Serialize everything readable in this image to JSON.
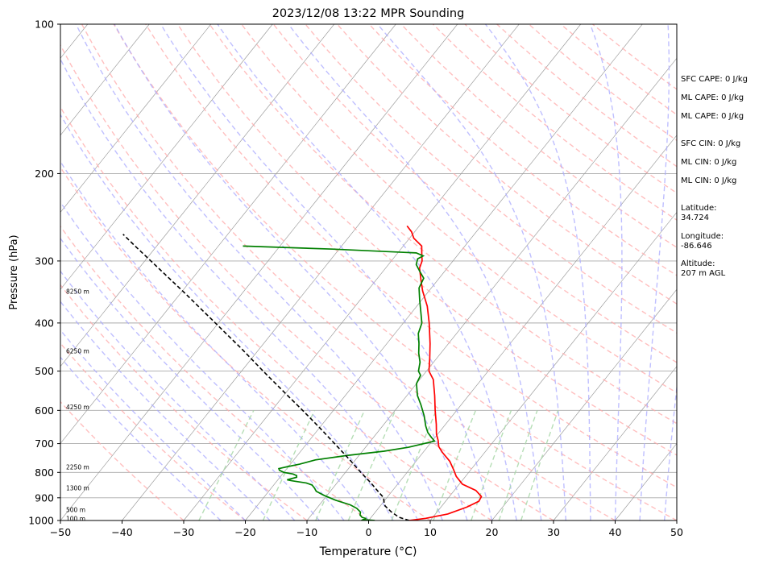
{
  "title": "2023/12/08 13:22 MPR Sounding",
  "chart_data": {
    "type": "line",
    "subtype": "skew-t log-p sounding",
    "title": "2023/12/08 13:22 MPR Sounding",
    "xlabel": "Temperature (°C)",
    "ylabel": "Pressure (hPa)",
    "xlim": [
      -50,
      50
    ],
    "ylim": [
      1000,
      100
    ],
    "y_scale": "log",
    "x_ticks": [
      -50,
      -40,
      -30,
      -20,
      -10,
      0,
      10,
      20,
      30,
      40,
      50
    ],
    "x_tick_labels": [
      "−50",
      "−40",
      "−30",
      "−20",
      "−10",
      "0",
      "10",
      "20",
      "30",
      "40",
      "50"
    ],
    "y_ticks": [
      1000,
      900,
      800,
      700,
      600,
      500,
      400,
      300,
      200,
      100
    ],
    "y_tick_labels": [
      "1000",
      "900",
      "800",
      "700",
      "600",
      "500",
      "400",
      "300",
      "200",
      "100"
    ],
    "grid": true,
    "height_labels": [
      {
        "p": 990,
        "text": "100 m"
      },
      {
        "p": 950,
        "text": "500 m"
      },
      {
        "p": 860,
        "text": "1300 m"
      },
      {
        "p": 780,
        "text": "2250 m"
      },
      {
        "p": 590,
        "text": "4250 m"
      },
      {
        "p": 455,
        "text": "6250 m"
      },
      {
        "p": 345,
        "text": "8250 m"
      }
    ],
    "series": [
      {
        "color": "#ff0000",
        "role": "temperature",
        "points": [
          {
            "p": 1000,
            "t": 6.6
          },
          {
            "p": 990,
            "t": 9.0
          },
          {
            "p": 970,
            "t": 12.0
          },
          {
            "p": 940,
            "t": 14.2
          },
          {
            "p": 915,
            "t": 15.4
          },
          {
            "p": 895,
            "t": 15.2
          },
          {
            "p": 870,
            "t": 13.5
          },
          {
            "p": 845,
            "t": 10.5
          },
          {
            "p": 815,
            "t": 8.5
          },
          {
            "p": 790,
            "t": 7.2
          },
          {
            "p": 760,
            "t": 5.5
          },
          {
            "p": 730,
            "t": 3.2
          },
          {
            "p": 710,
            "t": 1.8
          },
          {
            "p": 690,
            "t": 0.9
          },
          {
            "p": 670,
            "t": -0.2
          },
          {
            "p": 640,
            "t": -1.5
          },
          {
            "p": 600,
            "t": -3.5
          },
          {
            "p": 560,
            "t": -5.5
          },
          {
            "p": 520,
            "t": -7.8
          },
          {
            "p": 500,
            "t": -9.6
          },
          {
            "p": 470,
            "t": -11.2
          },
          {
            "p": 440,
            "t": -13.0
          },
          {
            "p": 400,
            "t": -15.8
          },
          {
            "p": 370,
            "t": -18.3
          },
          {
            "p": 345,
            "t": -21.0
          },
          {
            "p": 330,
            "t": -22.5
          },
          {
            "p": 310,
            "t": -24.5
          },
          {
            "p": 300,
            "t": -25.0
          },
          {
            "p": 290,
            "t": -26.0
          },
          {
            "p": 280,
            "t": -27.0
          },
          {
            "p": 270,
            "t": -29.3
          },
          {
            "p": 262,
            "t": -30.5
          },
          {
            "p": 255,
            "t": -32.0
          }
        ]
      },
      {
        "color": "#008000",
        "role": "dewpoint",
        "points": [
          {
            "p": 1000,
            "t": 1.0
          },
          {
            "p": 996,
            "t": -1.0
          },
          {
            "p": 990,
            "t": -0.8
          },
          {
            "p": 985,
            "t": -1.5
          },
          {
            "p": 975,
            "t": -2.1
          },
          {
            "p": 962,
            "t": -2.4
          },
          {
            "p": 945,
            "t": -3.5
          },
          {
            "p": 930,
            "t": -5.0
          },
          {
            "p": 910,
            "t": -8.0
          },
          {
            "p": 890,
            "t": -10.5
          },
          {
            "p": 873,
            "t": -12.3
          },
          {
            "p": 860,
            "t": -13.0
          },
          {
            "p": 848,
            "t": -13.8
          },
          {
            "p": 840,
            "t": -15.0
          },
          {
            "p": 832,
            "t": -17.5
          },
          {
            "p": 828,
            "t": -18.5
          },
          {
            "p": 818,
            "t": -17.3
          },
          {
            "p": 812,
            "t": -17.5
          },
          {
            "p": 806,
            "t": -18.3
          },
          {
            "p": 800,
            "t": -20.0
          },
          {
            "p": 792,
            "t": -21.0
          },
          {
            "p": 786,
            "t": -21.3
          },
          {
            "p": 780,
            "t": -20.3
          },
          {
            "p": 770,
            "t": -18.5
          },
          {
            "p": 755,
            "t": -16.5
          },
          {
            "p": 740,
            "t": -12.0
          },
          {
            "p": 725,
            "t": -6.5
          },
          {
            "p": 712,
            "t": -3.0
          },
          {
            "p": 700,
            "t": -1.0
          },
          {
            "p": 692,
            "t": 0.4
          },
          {
            "p": 680,
            "t": -0.6
          },
          {
            "p": 665,
            "t": -1.8
          },
          {
            "p": 645,
            "t": -3.0
          },
          {
            "p": 615,
            "t": -4.6
          },
          {
            "p": 585,
            "t": -6.5
          },
          {
            "p": 560,
            "t": -8.3
          },
          {
            "p": 530,
            "t": -10.0
          },
          {
            "p": 510,
            "t": -10.4
          },
          {
            "p": 500,
            "t": -11.3
          },
          {
            "p": 480,
            "t": -12.2
          },
          {
            "p": 460,
            "t": -13.6
          },
          {
            "p": 440,
            "t": -14.8
          },
          {
            "p": 420,
            "t": -16.2
          },
          {
            "p": 400,
            "t": -17.0
          },
          {
            "p": 380,
            "t": -18.6
          },
          {
            "p": 360,
            "t": -20.3
          },
          {
            "p": 340,
            "t": -22.0
          },
          {
            "p": 325,
            "t": -22.5
          },
          {
            "p": 315,
            "t": -24.0
          },
          {
            "p": 305,
            "t": -25.5
          },
          {
            "p": 297,
            "t": -26.0
          },
          {
            "p": 293,
            "t": -25.5
          },
          {
            "p": 289,
            "t": -27.0
          },
          {
            "p": 284,
            "t": -41.0
          },
          {
            "p": 280,
            "t": -56.0
          }
        ]
      },
      {
        "color": "#000000",
        "role": "parcel",
        "dash": "5,3",
        "points": [
          {
            "p": 1000,
            "t": 6.6
          },
          {
            "p": 985,
            "t": 4.5
          },
          {
            "p": 960,
            "t": 2.5
          },
          {
            "p": 935,
            "t": 0.8
          },
          {
            "p": 915,
            "t": 0.0
          },
          {
            "p": 900,
            "t": -0.5
          },
          {
            "p": 870,
            "t": -2.5
          },
          {
            "p": 840,
            "t": -4.5
          },
          {
            "p": 800,
            "t": -7.5
          },
          {
            "p": 750,
            "t": -11.3
          },
          {
            "p": 700,
            "t": -15.5
          },
          {
            "p": 650,
            "t": -20.0
          },
          {
            "p": 600,
            "t": -25.0
          },
          {
            "p": 550,
            "t": -30.5
          },
          {
            "p": 500,
            "t": -36.5
          },
          {
            "p": 450,
            "t": -43.0
          },
          {
            "p": 400,
            "t": -50.5
          },
          {
            "p": 350,
            "t": -59.0
          },
          {
            "p": 300,
            "t": -69.0
          },
          {
            "p": 280,
            "t": -73.5
          },
          {
            "p": 265,
            "t": -77.0
          }
        ]
      }
    ]
  },
  "indices": {
    "sfc_cape": "SFC CAPE: 0 J/kg",
    "ml_cape_1": "ML CAPE: 0 J/kg",
    "ml_cape_2": "ML CAPE: 0 J/kg",
    "sfc_cin": "SFC CIN: 0 J/kg",
    "ml_cin_1": "ML CIN: 0 J/kg",
    "ml_cin_2": "ML CIN: 0 J/kg",
    "latitude": "Latitude:\n34.724",
    "longitude": "Longitude:\n-86.646",
    "altitude": "Altitude:\n207 m AGL"
  },
  "colors": {
    "temperature": "#ff0000",
    "dewpoint": "#008000",
    "parcel": "#000000",
    "dry_adiabats": "#ffaaaa",
    "moist_adiabats": "#aaaaff",
    "mixing_ratio": "#a9d8a9",
    "isotherms": "#aaaaaa"
  }
}
